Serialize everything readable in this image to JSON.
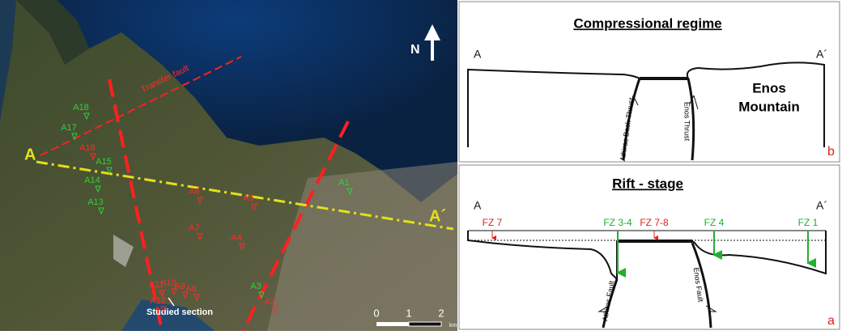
{
  "map": {
    "transfer_fault": "Transfer fault",
    "section_start": "A",
    "section_end": "A´",
    "north": "N",
    "scale": {
      "ticks": [
        0,
        1,
        2
      ],
      "unit": "km"
    },
    "studied_section": "Studied section",
    "sites": [
      "A18",
      "A17",
      "A16",
      "A15",
      "A14",
      "A13",
      "A6",
      "A5",
      "A7",
      "A4",
      "A1",
      "A3",
      "A2",
      "A11",
      "A10",
      "A9",
      "A8",
      "A12"
    ]
  },
  "panel_b": {
    "title": "Compressional regime",
    "left": "A",
    "right": "A´",
    "mountain": [
      "Enos",
      "Mountain"
    ],
    "faults": [
      "Athiras Back-Thrust",
      "Enos Thrust"
    ],
    "letter": "b"
  },
  "panel_a": {
    "title": "Rift - stage",
    "left": "A",
    "right": "A´",
    "zones": [
      "FZ 7",
      "FZ 3-4",
      "FZ 7-8",
      "FZ 4",
      "FZ 1"
    ],
    "faults": [
      "Athiras Fault",
      "Enos Fault"
    ],
    "letter": "a"
  }
}
